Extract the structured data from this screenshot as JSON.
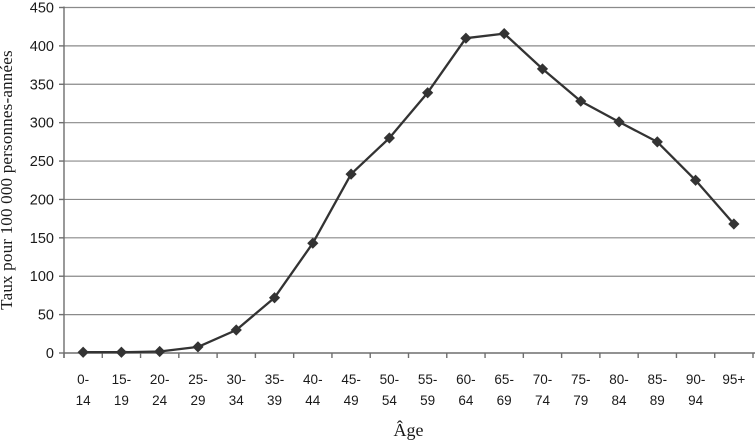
{
  "figure": {
    "ylabel": "Taux pour 100 000 personnes-années",
    "xlabel": "Âge"
  },
  "chart_data": {
    "type": "line",
    "title": "",
    "xlabel": "Âge",
    "ylabel": "Taux pour 100 000 personnes-années",
    "categories": [
      "0-14",
      "15-19",
      "20-24",
      "25-29",
      "30-34",
      "35-39",
      "40-44",
      "45-49",
      "50-54",
      "55-59",
      "60-64",
      "65-69",
      "70-74",
      "75-79",
      "80-84",
      "85-89",
      "90-94",
      "95+"
    ],
    "category_labels_line1": [
      "0-",
      "15-",
      "20-",
      "25-",
      "30-",
      "35-",
      "40-",
      "45-",
      "50-",
      "55-",
      "60-",
      "65-",
      "70-",
      "75-",
      "80-",
      "85-",
      "90-",
      "95+"
    ],
    "category_labels_line2": [
      "14",
      "19",
      "24",
      "29",
      "34",
      "39",
      "44",
      "49",
      "54",
      "59",
      "64",
      "69",
      "74",
      "79",
      "84",
      "89",
      "94",
      ""
    ],
    "values": [
      1,
      1,
      2,
      8,
      30,
      72,
      143,
      233,
      280,
      339,
      410,
      416,
      370,
      328,
      301,
      275,
      225,
      168
    ],
    "ylim": [
      0,
      450
    ],
    "ytick_step": 50,
    "ytick_labels": [
      "0",
      "50",
      "100",
      "150",
      "200",
      "250",
      "300",
      "350",
      "400",
      "450"
    ],
    "grid": "horizontal",
    "legend": "none",
    "marker": "diamond",
    "line_color": "#333333",
    "marker_color": "#333333",
    "gridline_color": "#8a8a8a",
    "axis_color": "#6e6e6e",
    "text_color": "#1a1a1a"
  }
}
